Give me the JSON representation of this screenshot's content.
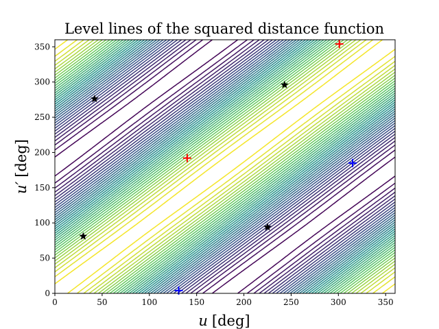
{
  "chart_data": {
    "type": "contour",
    "title": "Level lines of the squared distance function",
    "xlabel_var": "u",
    "xlabel_unit": "[deg]",
    "ylabel_var": "u′",
    "ylabel_unit": "[deg]",
    "xlim": [
      0,
      360
    ],
    "ylim": [
      0,
      360
    ],
    "xticks": [
      0,
      50,
      100,
      150,
      200,
      250,
      300,
      350
    ],
    "yticks": [
      0,
      50,
      100,
      150,
      200,
      250,
      300,
      350
    ],
    "colormap": [
      "#440154",
      "#3b528b",
      "#21918c",
      "#5ec962",
      "#fde725"
    ],
    "grid": false,
    "markers": [
      {
        "kind": "minimum",
        "symbol": "+",
        "color": "#ff0000",
        "u": 140,
        "v": 192
      },
      {
        "kind": "minimum",
        "symbol": "+",
        "color": "#ff0000",
        "u": 301,
        "v": 354
      },
      {
        "kind": "maximum",
        "symbol": "+",
        "color": "#0000ff",
        "u": 315,
        "v": 185
      },
      {
        "kind": "maximum",
        "symbol": "+",
        "color": "#0000ff",
        "u": 131,
        "v": 4
      },
      {
        "kind": "saddle",
        "symbol": "★",
        "color": "#000000",
        "u": 42,
        "v": 276
      },
      {
        "kind": "saddle",
        "symbol": "★",
        "color": "#000000",
        "u": 243,
        "v": 296
      },
      {
        "kind": "saddle",
        "symbol": "★",
        "color": "#000000",
        "u": 225,
        "v": 94
      },
      {
        "kind": "saddle",
        "symbol": "★",
        "color": "#000000",
        "u": 30,
        "v": 81
      }
    ]
  }
}
